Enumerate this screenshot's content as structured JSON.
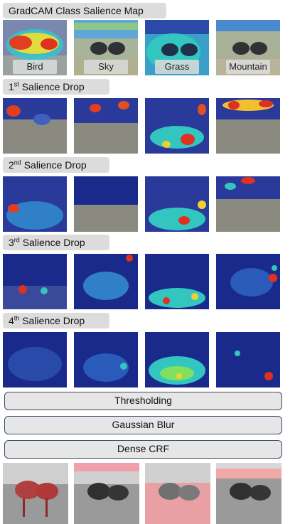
{
  "header": {
    "title": "GradCAM Class Salience Map"
  },
  "classes": [
    "Bird",
    "Sky",
    "Grass",
    "Mountain"
  ],
  "drops": [
    {
      "num": "1",
      "suffix": "st",
      "text": " Salience Drop"
    },
    {
      "num": "2",
      "suffix": "nd",
      "text": " Salience Drop"
    },
    {
      "num": "3",
      "suffix": "rd",
      "text": " Salience Drop"
    },
    {
      "num": "4",
      "suffix": "th",
      "text": " Salience Drop"
    }
  ],
  "steps": [
    "Thresholding",
    "Gaussian Blur",
    "Dense CRF"
  ],
  "colors": {
    "heat_low": "#1a2a9a",
    "heat_mid": "#2fd0d0",
    "heat_high": "#e03020",
    "seg_mask": "#e05060",
    "step_border": "#3a4a6a",
    "label_bg": "#dcdcdc"
  }
}
